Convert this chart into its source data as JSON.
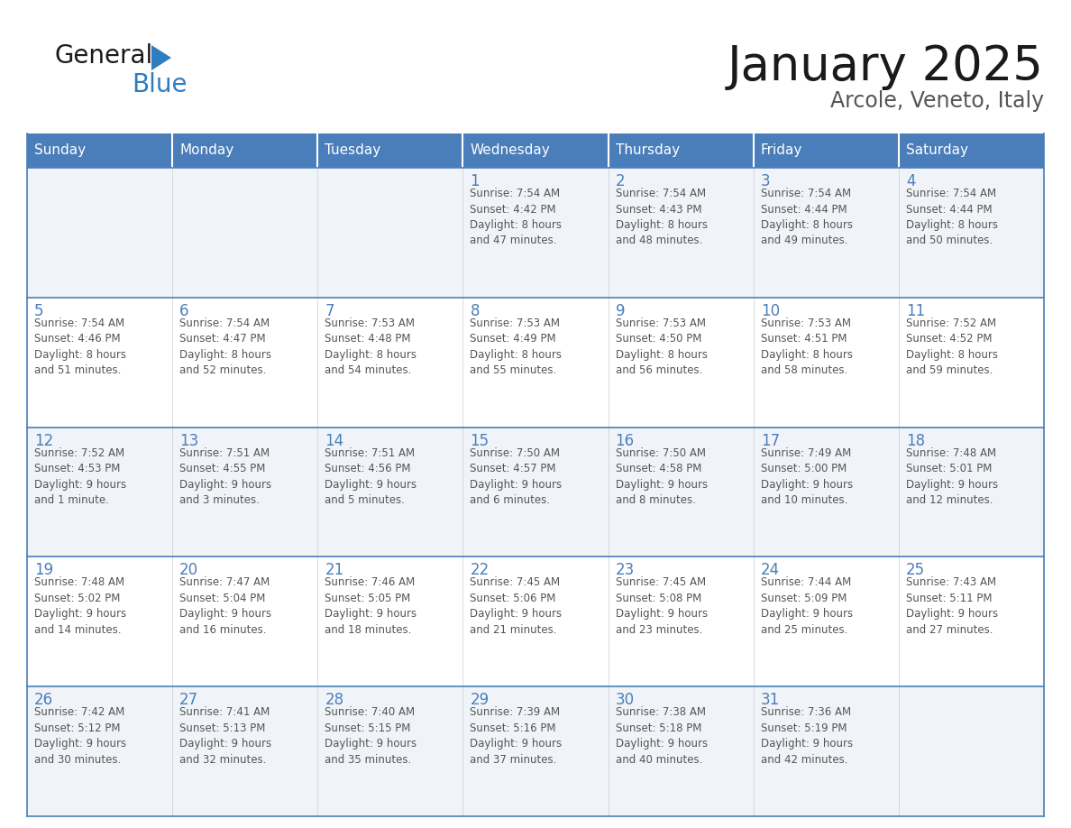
{
  "title": "January 2025",
  "subtitle": "Arcole, Veneto, Italy",
  "days_of_week": [
    "Sunday",
    "Monday",
    "Tuesday",
    "Wednesday",
    "Thursday",
    "Friday",
    "Saturday"
  ],
  "header_bg": "#4A7EBB",
  "header_text_color": "#FFFFFF",
  "cell_bg_odd": "#F0F4F8",
  "cell_bg_even": "#FFFFFF",
  "cell_border_color": "#4A7EBB",
  "day_number_color": "#4A7EBB",
  "cell_text_color": "#555555",
  "title_color": "#1a1a1a",
  "subtitle_color": "#555555",
  "logo_general_color": "#1a1a1a",
  "logo_blue_color": "#2E7DC0",
  "logo_triangle_color": "#2E7DC0",
  "weeks": [
    [
      {
        "day": "",
        "text": ""
      },
      {
        "day": "",
        "text": ""
      },
      {
        "day": "",
        "text": ""
      },
      {
        "day": "1",
        "text": "Sunrise: 7:54 AM\nSunset: 4:42 PM\nDaylight: 8 hours\nand 47 minutes."
      },
      {
        "day": "2",
        "text": "Sunrise: 7:54 AM\nSunset: 4:43 PM\nDaylight: 8 hours\nand 48 minutes."
      },
      {
        "day": "3",
        "text": "Sunrise: 7:54 AM\nSunset: 4:44 PM\nDaylight: 8 hours\nand 49 minutes."
      },
      {
        "day": "4",
        "text": "Sunrise: 7:54 AM\nSunset: 4:44 PM\nDaylight: 8 hours\nand 50 minutes."
      }
    ],
    [
      {
        "day": "5",
        "text": "Sunrise: 7:54 AM\nSunset: 4:46 PM\nDaylight: 8 hours\nand 51 minutes."
      },
      {
        "day": "6",
        "text": "Sunrise: 7:54 AM\nSunset: 4:47 PM\nDaylight: 8 hours\nand 52 minutes."
      },
      {
        "day": "7",
        "text": "Sunrise: 7:53 AM\nSunset: 4:48 PM\nDaylight: 8 hours\nand 54 minutes."
      },
      {
        "day": "8",
        "text": "Sunrise: 7:53 AM\nSunset: 4:49 PM\nDaylight: 8 hours\nand 55 minutes."
      },
      {
        "day": "9",
        "text": "Sunrise: 7:53 AM\nSunset: 4:50 PM\nDaylight: 8 hours\nand 56 minutes."
      },
      {
        "day": "10",
        "text": "Sunrise: 7:53 AM\nSunset: 4:51 PM\nDaylight: 8 hours\nand 58 minutes."
      },
      {
        "day": "11",
        "text": "Sunrise: 7:52 AM\nSunset: 4:52 PM\nDaylight: 8 hours\nand 59 minutes."
      }
    ],
    [
      {
        "day": "12",
        "text": "Sunrise: 7:52 AM\nSunset: 4:53 PM\nDaylight: 9 hours\nand 1 minute."
      },
      {
        "day": "13",
        "text": "Sunrise: 7:51 AM\nSunset: 4:55 PM\nDaylight: 9 hours\nand 3 minutes."
      },
      {
        "day": "14",
        "text": "Sunrise: 7:51 AM\nSunset: 4:56 PM\nDaylight: 9 hours\nand 5 minutes."
      },
      {
        "day": "15",
        "text": "Sunrise: 7:50 AM\nSunset: 4:57 PM\nDaylight: 9 hours\nand 6 minutes."
      },
      {
        "day": "16",
        "text": "Sunrise: 7:50 AM\nSunset: 4:58 PM\nDaylight: 9 hours\nand 8 minutes."
      },
      {
        "day": "17",
        "text": "Sunrise: 7:49 AM\nSunset: 5:00 PM\nDaylight: 9 hours\nand 10 minutes."
      },
      {
        "day": "18",
        "text": "Sunrise: 7:48 AM\nSunset: 5:01 PM\nDaylight: 9 hours\nand 12 minutes."
      }
    ],
    [
      {
        "day": "19",
        "text": "Sunrise: 7:48 AM\nSunset: 5:02 PM\nDaylight: 9 hours\nand 14 minutes."
      },
      {
        "day": "20",
        "text": "Sunrise: 7:47 AM\nSunset: 5:04 PM\nDaylight: 9 hours\nand 16 minutes."
      },
      {
        "day": "21",
        "text": "Sunrise: 7:46 AM\nSunset: 5:05 PM\nDaylight: 9 hours\nand 18 minutes."
      },
      {
        "day": "22",
        "text": "Sunrise: 7:45 AM\nSunset: 5:06 PM\nDaylight: 9 hours\nand 21 minutes."
      },
      {
        "day": "23",
        "text": "Sunrise: 7:45 AM\nSunset: 5:08 PM\nDaylight: 9 hours\nand 23 minutes."
      },
      {
        "day": "24",
        "text": "Sunrise: 7:44 AM\nSunset: 5:09 PM\nDaylight: 9 hours\nand 25 minutes."
      },
      {
        "day": "25",
        "text": "Sunrise: 7:43 AM\nSunset: 5:11 PM\nDaylight: 9 hours\nand 27 minutes."
      }
    ],
    [
      {
        "day": "26",
        "text": "Sunrise: 7:42 AM\nSunset: 5:12 PM\nDaylight: 9 hours\nand 30 minutes."
      },
      {
        "day": "27",
        "text": "Sunrise: 7:41 AM\nSunset: 5:13 PM\nDaylight: 9 hours\nand 32 minutes."
      },
      {
        "day": "28",
        "text": "Sunrise: 7:40 AM\nSunset: 5:15 PM\nDaylight: 9 hours\nand 35 minutes."
      },
      {
        "day": "29",
        "text": "Sunrise: 7:39 AM\nSunset: 5:16 PM\nDaylight: 9 hours\nand 37 minutes."
      },
      {
        "day": "30",
        "text": "Sunrise: 7:38 AM\nSunset: 5:18 PM\nDaylight: 9 hours\nand 40 minutes."
      },
      {
        "day": "31",
        "text": "Sunrise: 7:36 AM\nSunset: 5:19 PM\nDaylight: 9 hours\nand 42 minutes."
      },
      {
        "day": "",
        "text": ""
      }
    ]
  ]
}
